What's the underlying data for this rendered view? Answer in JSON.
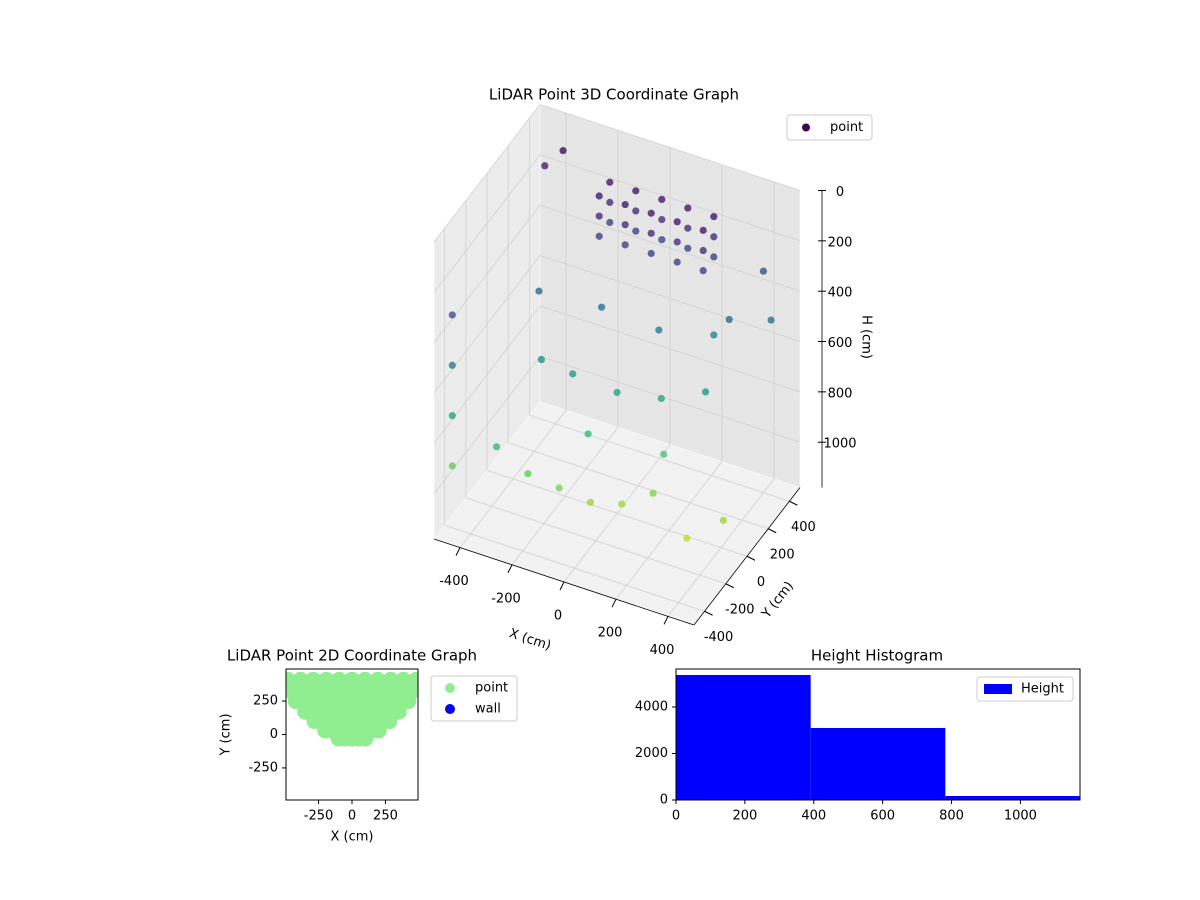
{
  "chart_data": [
    {
      "type": "scatter3d",
      "title": "LiDAR Point 3D Coordinate Graph",
      "x_label": "X (cm)",
      "y_label": "Y (cm)",
      "z_label": "H (cm)",
      "xlim": [
        -500,
        500
      ],
      "ylim": [
        -500,
        500
      ],
      "zlim": [
        0,
        1180
      ],
      "z_inverted": true,
      "xticks": [
        -400,
        -200,
        0,
        200,
        400
      ],
      "yticks": [
        -400,
        -200,
        0,
        200,
        400
      ],
      "zticks": [
        0,
        200,
        400,
        600,
        800,
        1000
      ],
      "grid": true,
      "legend": "upper right",
      "series": [
        {
          "name": "point",
          "color": "#440154",
          "colormap": "viridis",
          "x": [
            -150,
            -50,
            50,
            150,
            250,
            -150,
            -50,
            50,
            150,
            250,
            -150,
            -50,
            50,
            150,
            250,
            -150,
            -50,
            50,
            150,
            250,
            -150,
            -50,
            50,
            150,
            250,
            -150,
            -50,
            50,
            150,
            250,
            -450,
            -450,
            -450,
            -450,
            -300,
            -200,
            -100,
            0,
            100,
            200,
            -250,
            -150,
            0,
            150,
            300,
            400,
            350,
            450,
            300,
            -400,
            -350,
            400,
            450,
            350,
            -100,
            100,
            -300,
            200,
            -50,
            250
          ],
          "y": [
            200,
            200,
            200,
            200,
            200,
            300,
            300,
            300,
            300,
            300,
            200,
            200,
            200,
            200,
            200,
            300,
            300,
            300,
            300,
            300,
            200,
            200,
            200,
            200,
            200,
            300,
            300,
            300,
            300,
            300,
            -450,
            -450,
            -450,
            -450,
            -400,
            -350,
            -300,
            -250,
            -200,
            -150,
            -100,
            -50,
            0,
            50,
            100,
            -300,
            -200,
            -100,
            -400,
            300,
            350,
            400,
            350,
            200,
            100,
            150,
            0,
            -50,
            -150,
            300
          ],
          "z": [
            80,
            80,
            80,
            80,
            80,
            80,
            80,
            80,
            80,
            80,
            160,
            160,
            160,
            160,
            160,
            160,
            160,
            160,
            160,
            160,
            240,
            240,
            240,
            240,
            240,
            240,
            240,
            240,
            240,
            240,
            300,
            500,
            700,
            900,
            800,
            900,
            950,
            1000,
            1000,
            950,
            600,
            650,
            700,
            700,
            650,
            1100,
            1050,
            1000,
            1150,
            100,
            50,
            300,
            450,
            400,
            450,
            500,
            400,
            850,
            800,
            550
          ]
        }
      ]
    },
    {
      "type": "scatter",
      "title": "LiDAR Point 2D Coordinate Graph",
      "x_label": "X (cm)",
      "y_label": "Y (cm)",
      "xlim": [
        -493,
        493
      ],
      "ylim": [
        -490,
        490
      ],
      "xticks": [
        -250,
        0,
        250
      ],
      "yticks": [
        -250,
        0,
        250
      ],
      "legend": "outside right",
      "series": [
        {
          "name": "point",
          "color": "#90ee90",
          "x": [
            -100,
            -50,
            0,
            50,
            100,
            -200,
            -150,
            -100,
            -50,
            0,
            50,
            100,
            150,
            200,
            -280,
            -210,
            -140,
            -70,
            0,
            70,
            140,
            210,
            280,
            -350,
            -280,
            -210,
            -140,
            -70,
            0,
            70,
            140,
            210,
            280,
            350,
            -420,
            -336,
            -252,
            -168,
            -84,
            0,
            84,
            168,
            252,
            336,
            420,
            -460,
            -368,
            -276,
            -184,
            -92,
            0,
            92,
            184,
            276,
            368,
            460,
            -480,
            -384,
            -288,
            -192,
            -96,
            0,
            96,
            192,
            288,
            384,
            480
          ],
          "y": [
            -30,
            -30,
            -30,
            -30,
            -30,
            30,
            30,
            30,
            30,
            30,
            30,
            30,
            30,
            30,
            100,
            100,
            100,
            100,
            100,
            100,
            100,
            100,
            100,
            170,
            170,
            170,
            170,
            170,
            170,
            170,
            170,
            170,
            170,
            170,
            250,
            250,
            250,
            250,
            250,
            250,
            250,
            250,
            250,
            250,
            250,
            330,
            330,
            330,
            330,
            330,
            330,
            330,
            330,
            330,
            330,
            330,
            410,
            410,
            410,
            410,
            410,
            410,
            410,
            410,
            410,
            410,
            410
          ]
        },
        {
          "name": "wall",
          "color": "#0000ff",
          "x": [],
          "y": []
        }
      ]
    },
    {
      "type": "histogram",
      "title": "Height Histogram",
      "xlim": [
        0,
        1173
      ],
      "ylim": [
        0,
        5634
      ],
      "xticks": [
        0,
        200,
        400,
        600,
        800,
        1000
      ],
      "yticks": [
        0,
        2000,
        4000
      ],
      "legend": "upper right",
      "bins": [
        0,
        391,
        782,
        1173
      ],
      "series": [
        {
          "name": "Height",
          "color": "#0000ff",
          "values": [
            5376,
            3097,
            172
          ]
        }
      ]
    }
  ]
}
